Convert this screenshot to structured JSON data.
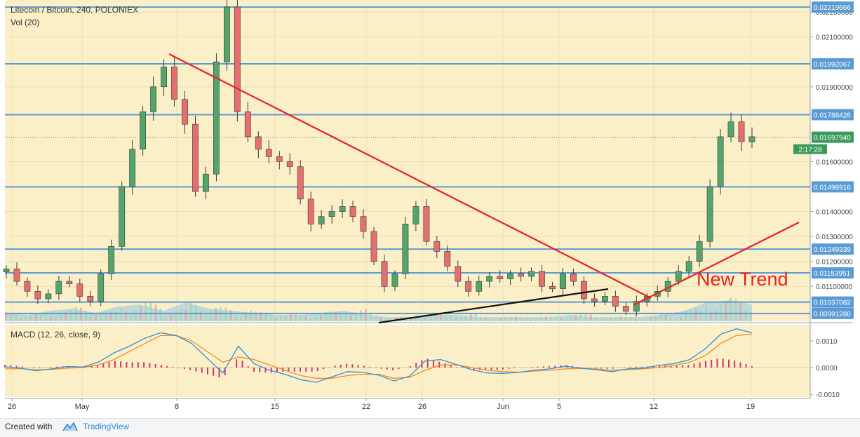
{
  "header": {
    "symbol_title": "Litecoin / Bitcoin, 240, POLONIEX",
    "volume_title": "Vol (20)",
    "macd_title": "MACD (12, 26, close, 9)"
  },
  "footer": {
    "created_with": "Created with",
    "brand": "TradingView"
  },
  "colors": {
    "background": "#fbefc8",
    "up_candle": "#54a56b",
    "down_candle": "#e66e6e",
    "level_line": "#5b9bd5",
    "trend_line": "#e62222",
    "support_line": "#111111",
    "macd_line": "#2f8fe0",
    "signal_line": "#f28c28",
    "histogram": "#d6336c",
    "volume_area": "#8ec7e6"
  },
  "chart_data": [
    {
      "type": "candlestick",
      "title": "Litecoin / Bitcoin, 240, POLONIEX",
      "x_tick_labels": [
        "26",
        "May",
        "8",
        "15",
        "22",
        "26",
        "Jun",
        "5",
        "12",
        "19"
      ],
      "ylim": [
        0.0096,
        0.0222
      ],
      "y_tick_labels": [
        "0.02200000",
        "0.02100000",
        "0.01900000",
        "0.01600000",
        "0.01400000",
        "0.01300000",
        "0.01200000",
        "0.01100000"
      ],
      "horizontal_levels": [
        "0.02219666",
        "0.01992067",
        "0.01788426",
        "0.01498916",
        "0.01249339",
        "0.01153951",
        "0.01037082",
        "0.00991280"
      ],
      "current_price_label": "0.01697940",
      "countdown_label": "2:17:28",
      "approx_close_series": [
        0.0117,
        0.0112,
        0.0108,
        0.0105,
        0.0107,
        0.0112,
        0.0111,
        0.0106,
        0.0104,
        0.0115,
        0.0126,
        0.015,
        0.0165,
        0.018,
        0.019,
        0.0198,
        0.0185,
        0.0175,
        0.0148,
        0.0155,
        0.02,
        0.0222,
        0.018,
        0.017,
        0.0165,
        0.0162,
        0.016,
        0.0158,
        0.0145,
        0.0135,
        0.0138,
        0.014,
        0.0142,
        0.0138,
        0.0132,
        0.012,
        0.011,
        0.0115,
        0.0135,
        0.0142,
        0.0128,
        0.0124,
        0.0118,
        0.0112,
        0.0108,
        0.0112,
        0.0114,
        0.0113,
        0.0115,
        0.0114,
        0.0116,
        0.011,
        0.0109,
        0.0115,
        0.0112,
        0.0105,
        0.0104,
        0.0106,
        0.0102,
        0.01,
        0.0104,
        0.0106,
        0.0108,
        0.0112,
        0.0116,
        0.012,
        0.0128,
        0.015,
        0.017,
        0.0176,
        0.0168,
        0.017
      ],
      "annotations": [
        {
          "text": "New Trend"
        }
      ]
    },
    {
      "type": "bar",
      "title": "Vol (20)",
      "approx_relative_volume": [
        0.4,
        0.3,
        0.5,
        0.6,
        0.4,
        0.7,
        0.8,
        0.5,
        0.9,
        0.6,
        0.5,
        0.4,
        0.3,
        0.3,
        0.4,
        0.5,
        0.3,
        0.2,
        0.2,
        0.3,
        0.3,
        0.2,
        0.2,
        0.2,
        0.2,
        0.3,
        0.2,
        0.2,
        0.2,
        0.3,
        0.5,
        0.9,
        1.0,
        0.8
      ]
    },
    {
      "type": "line",
      "title": "MACD (12, 26, close, 9)",
      "y_tick_labels": [
        "0.0010",
        "0.0000",
        "-0.0010"
      ],
      "ylim": [
        -0.0011,
        0.0016
      ],
      "series": [
        {
          "values": [
            3e-05,
            -2e-05,
            -0.00012,
            -5e-05,
            4e-05,
            2e-05,
            0.0002,
            0.00055,
            0.0008,
            0.0011,
            0.0013,
            0.0012,
            0.0009,
            0.00035,
            -0.0002,
            0.0008,
            0.00015,
            -0.0001,
            -0.00025,
            -0.00045,
            -0.00055,
            -0.00035,
            -0.00015,
            -0.00018,
            -0.00028,
            -0.0005,
            -0.00032,
            0.00025,
            0.0003,
            0.00012,
            -8e-05,
            -0.0002,
            -0.00022,
            -0.00018,
            -0.0001,
            -5e-05,
            5e-05,
            -2e-05,
            -8e-05,
            -0.00015,
            -5e-05,
            -2e-05,
            8e-05,
            0.00015,
            0.0003,
            0.0007,
            0.00125,
            0.00145,
            0.0013
          ]
        },
        {
          "values": [
            -5e-05,
            -4e-05,
            -8e-05,
            -7e-05,
            -2e-05,
            0.0,
            0.0001,
            0.0003,
            0.0006,
            0.0009,
            0.0012,
            0.0012,
            0.001,
            0.0006,
            0.0002,
            0.0004,
            0.0003,
            0.0001,
            -0.0001,
            -0.0003,
            -0.0004,
            -0.0004,
            -0.0003,
            -0.00025,
            -0.00025,
            -0.0004,
            -0.00036,
            -0.0001,
            0.0001,
            0.0001,
            0.0,
            -0.0001,
            -0.00015,
            -0.00017,
            -0.00013,
            -0.0001,
            -5e-05,
            -3e-05,
            -5e-05,
            -0.0001,
            -8e-05,
            -5e-05,
            0.0,
            8e-05,
            0.0002,
            0.00045,
            0.0009,
            0.0012,
            0.00125
          ]
        },
        {
          "values": [
            0.0001,
            5e-05,
            -4e-05,
            2e-05,
            6e-05,
            2e-05,
            0.0001,
            0.00025,
            0.0002,
            0.0002,
            0.0001,
            0.0,
            -0.0001,
            -0.00025,
            -0.0004,
            0.0004,
            -0.00015,
            -0.0002,
            -0.00015,
            -0.00015,
            -0.00015,
            5e-05,
            0.00015,
            7e-05,
            -3e-05,
            -0.0001,
            4e-05,
            0.00035,
            0.0002,
            2e-05,
            -8e-05,
            -0.0001,
            -7e-05,
            -1e-05,
            3e-05,
            5e-05,
            0.0001,
            1e-05,
            -3e-05,
            -5e-05,
            3e-05,
            3e-05,
            8e-05,
            7e-05,
            0.0001,
            0.00025,
            0.00035,
            0.00025,
            5e-05
          ]
        }
      ]
    }
  ]
}
